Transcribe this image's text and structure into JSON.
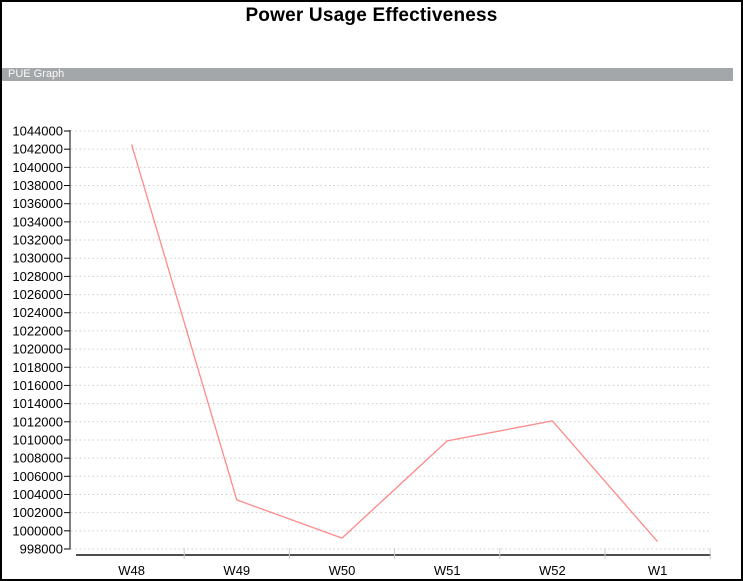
{
  "page": {
    "title": "Power Usage Effectiveness",
    "section_header": "PUE Graph"
  },
  "colors": {
    "series_line": "#ff8a8a",
    "header_bar_bg": "#a4a7aa",
    "header_bar_text": "#f8f8f8",
    "gridline": "#cccccc",
    "y_axis": "#000000",
    "x_axis": "#4d4d4d",
    "x_tick": "#cccccc",
    "tick_label": "#000000",
    "title_text": "#000000"
  },
  "chart_data": {
    "type": "line",
    "title": "Power Usage Effectiveness",
    "subtitle": "PUE Graph",
    "categories": [
      "W48",
      "W49",
      "W50",
      "W51",
      "W52",
      "W1"
    ],
    "series": [
      {
        "name": "PUE",
        "values": [
          1042500,
          1003400,
          999200,
          1009900,
          1012100,
          998800
        ]
      }
    ],
    "xlabel": "",
    "ylabel": "",
    "ylim": [
      998000,
      1044000
    ],
    "ytick_step": 2000,
    "ytick_labels": [
      "998000",
      "1000000",
      "1002000",
      "1004000",
      "1006000",
      "1008000",
      "1010000",
      "1012000",
      "1014000",
      "1016000",
      "1018000",
      "1020000",
      "1022000",
      "1024000",
      "1026000",
      "1028000",
      "1030000",
      "1032000",
      "1034000",
      "1036000",
      "1038000",
      "1040000",
      "1042000",
      "1044000"
    ],
    "grid": "horizontal-dotted",
    "legend_position": "none"
  }
}
